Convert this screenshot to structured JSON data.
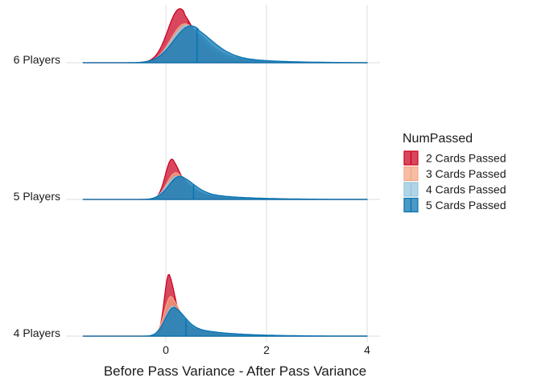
{
  "chart_data": {
    "type": "area",
    "subtype": "ridgeline-density",
    "title": "",
    "xlabel": "Before Pass Variance - After Pass Variance",
    "ylabel": "",
    "xlim": [
      -1.65,
      4.1
    ],
    "xticks": [
      0,
      2,
      4
    ],
    "grid": true,
    "legend": {
      "title": "NumPassed",
      "placement": "right",
      "entries": [
        "2 Cards Passed",
        "3 Cards Passed",
        "4 Cards Passed",
        "5 Cards Passed"
      ]
    },
    "colors": [
      "#ca0020",
      "#f4a582",
      "#92c5de",
      "#0571b0"
    ],
    "groups": [
      "4 Players",
      "5 Players",
      "6 Players"
    ],
    "series": [
      {
        "name": "2 Cards Passed",
        "color": "#ca0020",
        "densities": [
          {
            "group": "6 Players",
            "peak_x": 0.28,
            "peak_height": 0.79,
            "spread": 0.24,
            "tail": 0.45,
            "median_line": 0.45
          },
          {
            "group": "5 Players",
            "peak_x": 0.12,
            "peak_height": 0.59,
            "spread": 0.13,
            "tail": 0.45,
            "median_line": 0.3
          },
          {
            "group": "4 Players",
            "peak_x": 0.06,
            "peak_height": 0.9,
            "spread": 0.09,
            "tail": 0.4,
            "median_line": 0.18
          }
        ]
      },
      {
        "name": "3 Cards Passed",
        "color": "#f4a582",
        "densities": [
          {
            "group": "6 Players",
            "peak_x": 0.38,
            "peak_height": 0.57,
            "spread": 0.28,
            "tail": 0.62,
            "median_line": 0.62
          },
          {
            "group": "5 Players",
            "peak_x": 0.2,
            "peak_height": 0.39,
            "spread": 0.18,
            "tail": 0.6,
            "median_line": 0.4
          },
          {
            "group": "4 Players",
            "peak_x": 0.1,
            "peak_height": 0.58,
            "spread": 0.13,
            "tail": 0.55,
            "median_line": 0.25
          }
        ]
      },
      {
        "name": "4 Cards Passed",
        "color": "#92c5de",
        "densities": [
          {
            "group": "6 Players",
            "peak_x": 0.42,
            "peak_height": 0.55,
            "spread": 0.3,
            "tail": 0.72,
            "median_line": 0.62
          },
          {
            "group": "5 Players",
            "peak_x": 0.22,
            "peak_height": 0.34,
            "spread": 0.2,
            "tail": 0.65,
            "median_line": 0.45
          },
          {
            "group": "4 Players",
            "peak_x": 0.14,
            "peak_height": 0.44,
            "spread": 0.15,
            "tail": 0.65,
            "median_line": 0.3
          }
        ]
      },
      {
        "name": "5 Cards Passed",
        "color": "#0571b0",
        "densities": [
          {
            "group": "6 Players",
            "peak_x": 0.5,
            "peak_height": 0.54,
            "spread": 0.34,
            "tail": 0.72,
            "median_line": 0.62
          },
          {
            "group": "5 Players",
            "peak_x": 0.28,
            "peak_height": 0.34,
            "spread": 0.22,
            "tail": 0.75,
            "median_line": 0.55
          },
          {
            "group": "4 Players",
            "peak_x": 0.16,
            "peak_height": 0.42,
            "spread": 0.17,
            "tail": 0.72,
            "median_line": 0.4
          }
        ]
      }
    ]
  }
}
